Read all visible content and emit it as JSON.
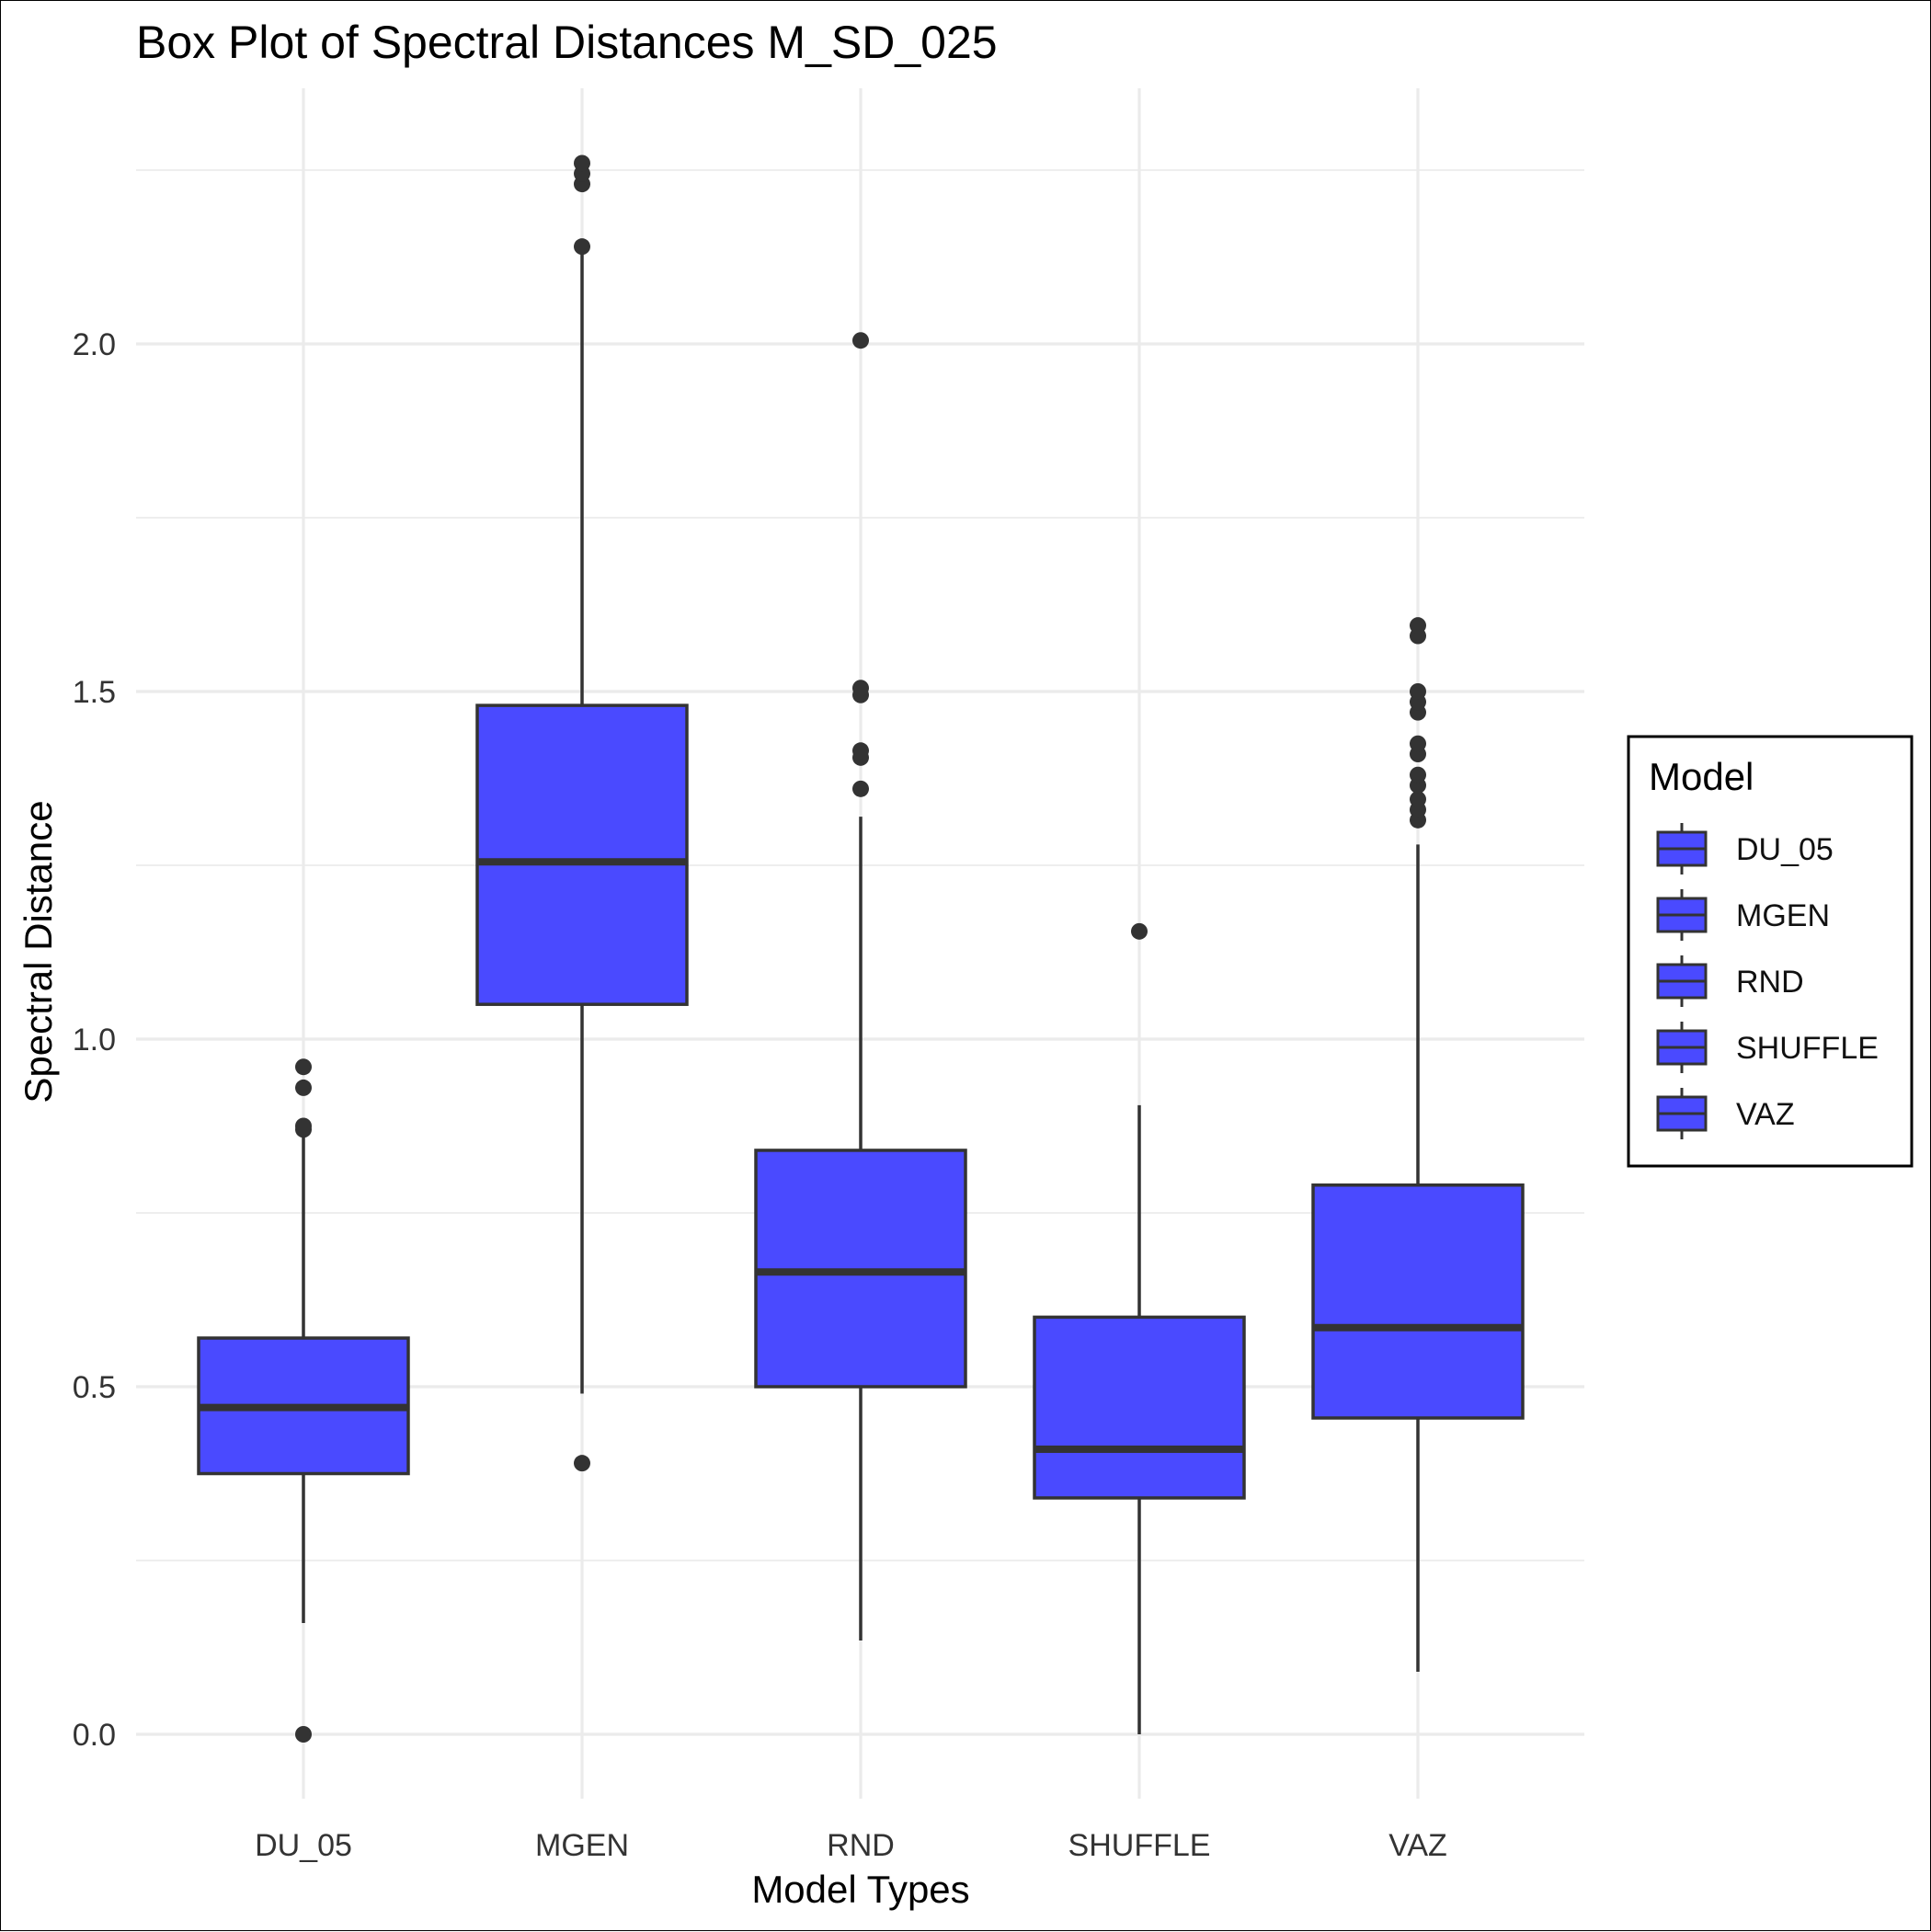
{
  "chart_data": {
    "type": "box",
    "title": "Box Plot of Spectral Distances M_SD_025",
    "xlabel": "Model Types",
    "ylabel": "Spectral Distance",
    "ylim": [
      -0.1,
      2.4
    ],
    "yticks": [
      "0.0",
      "0.5",
      "1.0",
      "1.5",
      "2.0"
    ],
    "ytick_values": [
      0.0,
      0.5,
      1.0,
      1.5,
      2.0
    ],
    "grid": true,
    "fill_color": "#4a4aff",
    "stroke_color": "#333333",
    "legend": {
      "title": "Model",
      "position": "right"
    },
    "categories": [
      "DU_05",
      "MGEN",
      "RND",
      "SHUFFLE",
      "VAZ"
    ],
    "boxes": [
      {
        "name": "DU_05",
        "lower_whisker": 0.16,
        "q1": 0.375,
        "median": 0.47,
        "q3": 0.57,
        "upper_whisker": 0.87,
        "outliers": [
          0.0,
          0.87,
          0.875,
          0.93,
          0.96
        ]
      },
      {
        "name": "MGEN",
        "lower_whisker": 0.49,
        "q1": 1.05,
        "median": 1.255,
        "q3": 1.48,
        "upper_whisker": 2.14,
        "outliers": [
          0.39,
          2.14,
          2.23,
          2.245,
          2.26
        ]
      },
      {
        "name": "RND",
        "lower_whisker": 0.135,
        "q1": 0.5,
        "median": 0.665,
        "q3": 0.84,
        "upper_whisker": 1.32,
        "outliers": [
          1.36,
          1.405,
          1.415,
          1.495,
          1.505,
          2.005
        ]
      },
      {
        "name": "SHUFFLE",
        "lower_whisker": 0.0,
        "q1": 0.34,
        "median": 0.41,
        "q3": 0.6,
        "upper_whisker": 0.905,
        "outliers": [
          1.155
        ]
      },
      {
        "name": "VAZ",
        "lower_whisker": 0.09,
        "q1": 0.455,
        "median": 0.585,
        "q3": 0.79,
        "upper_whisker": 1.28,
        "outliers": [
          1.315,
          1.33,
          1.345,
          1.365,
          1.38,
          1.41,
          1.425,
          1.47,
          1.485,
          1.5,
          1.58,
          1.595
        ]
      }
    ]
  }
}
